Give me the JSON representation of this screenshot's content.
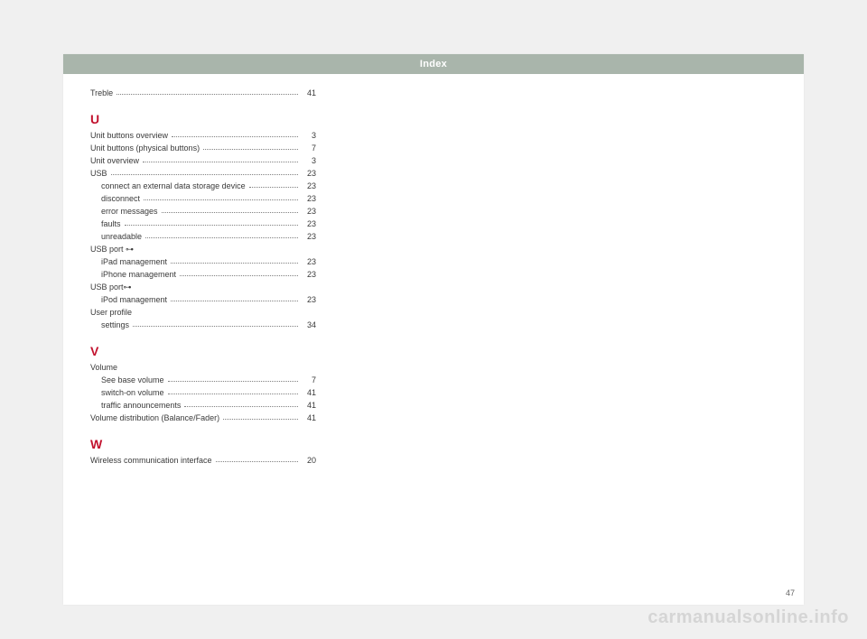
{
  "header": {
    "title": "Index"
  },
  "entries": {
    "treble": {
      "label": "Treble",
      "page": "41"
    },
    "u_letter": "U",
    "unit_buttons_overview": {
      "label": "Unit buttons overview",
      "page": "3"
    },
    "unit_buttons_physical": {
      "label": "Unit buttons (physical buttons)",
      "page": "7"
    },
    "unit_overview": {
      "label": "Unit overview",
      "page": "3"
    },
    "usb": {
      "label": "USB",
      "page": "23"
    },
    "usb_connect": {
      "label": "connect an external data storage device",
      "page": "23"
    },
    "usb_disconnect": {
      "label": "disconnect",
      "page": "23"
    },
    "usb_error": {
      "label": "error messages",
      "page": "23"
    },
    "usb_faults": {
      "label": "faults",
      "page": "23"
    },
    "usb_unreadable": {
      "label": "unreadable",
      "page": "23"
    },
    "usb_port1": "USB port ⊶",
    "usb_ipad": {
      "label": "iPad management",
      "page": "23"
    },
    "usb_iphone": {
      "label": "iPhone management",
      "page": "23"
    },
    "usb_port2": "USB port⊶",
    "usb_ipod": {
      "label": "iPod management",
      "page": "23"
    },
    "user_profile_title": "User profile",
    "user_profile_settings": {
      "label": "settings",
      "page": "34"
    },
    "v_letter": "V",
    "volume_title": "Volume",
    "volume_base": {
      "label": "See base volume",
      "page": "7"
    },
    "volume_switchon": {
      "label": "switch-on volume",
      "page": "41"
    },
    "volume_traffic": {
      "label": "traffic announcements",
      "page": "41"
    },
    "volume_dist": {
      "label": "Volume distribution (Balance/Fader)",
      "page": "41"
    },
    "w_letter": "W",
    "wireless": {
      "label": "Wireless communication interface",
      "page": "20"
    }
  },
  "pageNumber": "47",
  "watermark": "carmanualsonline.info",
  "colors": {
    "page_bg": "#f0f0f0",
    "paper_bg": "#ffffff",
    "header_bg": "#a9b5ab",
    "header_fg": "#ffffff",
    "text": "#3a3a3a",
    "accent": "#c2122e",
    "watermark": "rgba(120,120,120,0.22)"
  }
}
